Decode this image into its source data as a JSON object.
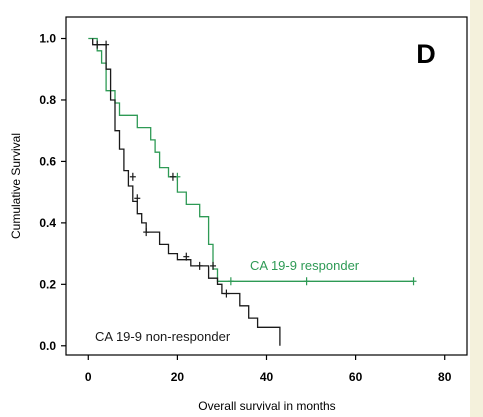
{
  "chart_data": {
    "type": "line",
    "panel_label": "D",
    "xlabel": "Overall survival in months",
    "ylabel": "Cumulative Survival",
    "xlim": [
      -5,
      85
    ],
    "ylim": [
      -0.03,
      1.07
    ],
    "xticks": [
      0,
      20,
      40,
      60,
      80
    ],
    "yticks": [
      0.0,
      0.2,
      0.4,
      0.6,
      0.8,
      1.0
    ],
    "ytick_labels": [
      "0.0",
      "0.2",
      "0.4",
      "0.6",
      "0.8",
      "1.0"
    ],
    "grid": false,
    "series": [
      {
        "name": "CA 19-9 responder",
        "color": "#2e9a55",
        "steps": [
          [
            0,
            1.0
          ],
          [
            2,
            1.0
          ],
          [
            2,
            0.96
          ],
          [
            3,
            0.96
          ],
          [
            3,
            0.92
          ],
          [
            4,
            0.92
          ],
          [
            4,
            0.83
          ],
          [
            6,
            0.83
          ],
          [
            6,
            0.79
          ],
          [
            7,
            0.79
          ],
          [
            7,
            0.75
          ],
          [
            11,
            0.75
          ],
          [
            11,
            0.71
          ],
          [
            14,
            0.71
          ],
          [
            14,
            0.67
          ],
          [
            15,
            0.67
          ],
          [
            15,
            0.63
          ],
          [
            16,
            0.63
          ],
          [
            16,
            0.58
          ],
          [
            18,
            0.58
          ],
          [
            18,
            0.55
          ],
          [
            20,
            0.55
          ],
          [
            20,
            0.5
          ],
          [
            22,
            0.5
          ],
          [
            22,
            0.46
          ],
          [
            25,
            0.46
          ],
          [
            25,
            0.42
          ],
          [
            27,
            0.42
          ],
          [
            27,
            0.33
          ],
          [
            28,
            0.33
          ],
          [
            28,
            0.25
          ],
          [
            29,
            0.25
          ],
          [
            29,
            0.21
          ],
          [
            73,
            0.21
          ]
        ],
        "censored": [
          [
            20,
            0.55
          ],
          [
            32,
            0.21
          ],
          [
            49,
            0.21
          ],
          [
            73,
            0.21
          ]
        ]
      },
      {
        "name": "CA 19-9 non-responder",
        "color": "#1a1a1a",
        "steps": [
          [
            1,
            1.0
          ],
          [
            1,
            0.98
          ],
          [
            4,
            0.98
          ],
          [
            4,
            0.9
          ],
          [
            5,
            0.9
          ],
          [
            5,
            0.8
          ],
          [
            6,
            0.8
          ],
          [
            6,
            0.7
          ],
          [
            7,
            0.7
          ],
          [
            7,
            0.64
          ],
          [
            8,
            0.64
          ],
          [
            8,
            0.57
          ],
          [
            9,
            0.57
          ],
          [
            9,
            0.52
          ],
          [
            10,
            0.52
          ],
          [
            10,
            0.47
          ],
          [
            11,
            0.47
          ],
          [
            11,
            0.43
          ],
          [
            12,
            0.43
          ],
          [
            12,
            0.4
          ],
          [
            13,
            0.4
          ],
          [
            13,
            0.37
          ],
          [
            16,
            0.37
          ],
          [
            16,
            0.33
          ],
          [
            18,
            0.33
          ],
          [
            18,
            0.3
          ],
          [
            20,
            0.3
          ],
          [
            20,
            0.28
          ],
          [
            23,
            0.28
          ],
          [
            23,
            0.26
          ],
          [
            27,
            0.26
          ],
          [
            27,
            0.22
          ],
          [
            29,
            0.22
          ],
          [
            29,
            0.2
          ],
          [
            30,
            0.2
          ],
          [
            30,
            0.17
          ],
          [
            34,
            0.17
          ],
          [
            34,
            0.13
          ],
          [
            36,
            0.13
          ],
          [
            36,
            0.09
          ],
          [
            38,
            0.09
          ],
          [
            38,
            0.06
          ],
          [
            43,
            0.06
          ],
          [
            43,
            0.0
          ]
        ],
        "censored": [
          [
            2,
            0.98
          ],
          [
            4,
            0.98
          ],
          [
            10,
            0.55
          ],
          [
            11,
            0.48
          ],
          [
            13,
            0.37
          ],
          [
            19,
            0.55
          ],
          [
            22,
            0.29
          ],
          [
            25,
            0.26
          ],
          [
            28,
            0.26
          ],
          [
            31,
            0.17
          ]
        ]
      }
    ],
    "annotations": [
      {
        "text": "CA 19-9 responder",
        "series": 0
      },
      {
        "text": "CA 19-9 non-responder",
        "series": 1
      }
    ]
  }
}
